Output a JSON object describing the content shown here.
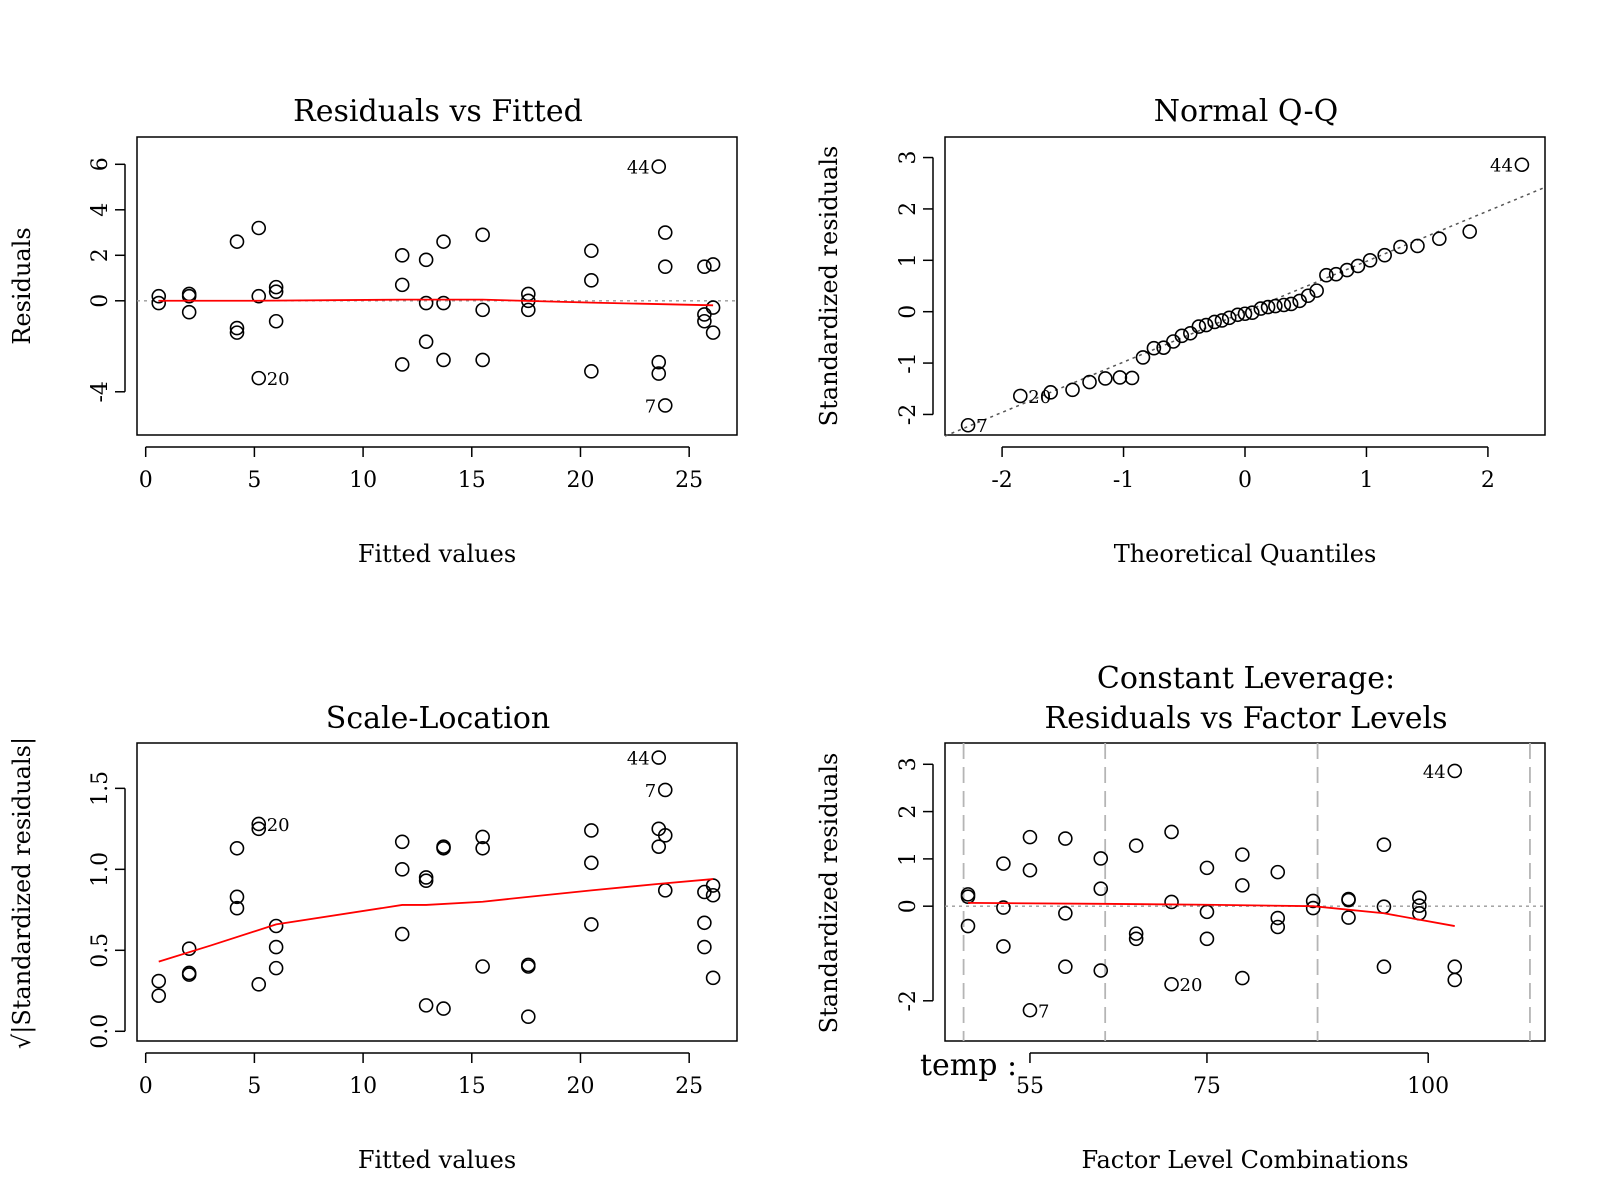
{
  "colors": {
    "points": "#000000",
    "smoother": "#ff0000",
    "reference_line": "#9a9a9a",
    "qq_line": "#555555",
    "level_separators": "#b5b5b5"
  },
  "chart_data": [
    {
      "type": "scatter",
      "title": "Residuals vs Fitted",
      "xlabel": "Fitted values",
      "ylabel": "Residuals",
      "xlim": [
        -0.4,
        27.2
      ],
      "ylim": [
        -5.9,
        7.2
      ],
      "xticks": [
        0,
        5,
        10,
        15,
        20,
        25
      ],
      "yticks": [
        -4,
        0,
        2,
        4,
        6
      ],
      "reference_line": 0,
      "points": [
        {
          "x": 0.6,
          "y": 0.2
        },
        {
          "x": 0.6,
          "y": -0.1
        },
        {
          "x": 2.0,
          "y": 0.3
        },
        {
          "x": 2.0,
          "y": 0.2
        },
        {
          "x": 2.0,
          "y": -0.5
        },
        {
          "x": 4.2,
          "y": 2.6
        },
        {
          "x": 4.2,
          "y": -1.2
        },
        {
          "x": 4.2,
          "y": -1.4
        },
        {
          "x": 5.2,
          "y": 3.2
        },
        {
          "x": 5.2,
          "y": 0.2
        },
        {
          "x": 5.2,
          "y": -3.4,
          "label": "20"
        },
        {
          "x": 6.0,
          "y": 0.6
        },
        {
          "x": 6.0,
          "y": 0.4
        },
        {
          "x": 6.0,
          "y": -0.9
        },
        {
          "x": 11.8,
          "y": 2.0
        },
        {
          "x": 11.8,
          "y": 0.7
        },
        {
          "x": 11.8,
          "y": -2.8
        },
        {
          "x": 12.9,
          "y": 1.8
        },
        {
          "x": 12.9,
          "y": -0.1
        },
        {
          "x": 12.9,
          "y": -1.8
        },
        {
          "x": 13.7,
          "y": 2.6
        },
        {
          "x": 13.7,
          "y": -0.1
        },
        {
          "x": 13.7,
          "y": -2.6
        },
        {
          "x": 15.5,
          "y": 2.9
        },
        {
          "x": 15.5,
          "y": -0.4
        },
        {
          "x": 15.5,
          "y": -2.6
        },
        {
          "x": 17.6,
          "y": 0.3
        },
        {
          "x": 17.6,
          "y": 0.0
        },
        {
          "x": 17.6,
          "y": -0.4
        },
        {
          "x": 20.5,
          "y": 2.2
        },
        {
          "x": 20.5,
          "y": 0.9
        },
        {
          "x": 20.5,
          "y": -3.1
        },
        {
          "x": 23.6,
          "y": 5.9,
          "label": "44"
        },
        {
          "x": 23.6,
          "y": -2.7
        },
        {
          "x": 23.6,
          "y": -3.2
        },
        {
          "x": 23.9,
          "y": 3.0
        },
        {
          "x": 23.9,
          "y": 1.5
        },
        {
          "x": 23.9,
          "y": -4.6,
          "label": "7"
        },
        {
          "x": 25.7,
          "y": 1.5
        },
        {
          "x": 25.7,
          "y": -0.6
        },
        {
          "x": 25.7,
          "y": -0.9
        },
        {
          "x": 26.1,
          "y": 1.6
        },
        {
          "x": 26.1,
          "y": -0.3
        },
        {
          "x": 26.1,
          "y": -1.4
        }
      ],
      "smoother": [
        {
          "x": 0.6,
          "y": 0.0
        },
        {
          "x": 5.0,
          "y": 0.0
        },
        {
          "x": 11.8,
          "y": 0.05
        },
        {
          "x": 15.5,
          "y": 0.05
        },
        {
          "x": 20.5,
          "y": -0.08
        },
        {
          "x": 26.1,
          "y": -0.2
        }
      ]
    },
    {
      "type": "scatter",
      "title": "Normal Q-Q",
      "xlabel": "Theoretical Quantiles",
      "ylabel": "Standardized residuals",
      "xlim": [
        -2.47,
        2.47
      ],
      "ylim": [
        -2.4,
        3.4
      ],
      "xticks": [
        -2,
        -1,
        0,
        1,
        2
      ],
      "yticks": [
        -2,
        -1,
        0,
        1,
        2,
        3
      ],
      "qq_line": {
        "intercept": 0.0,
        "slope": 0.98
      },
      "points": [
        {
          "x": -2.28,
          "y": -2.21,
          "label": "7"
        },
        {
          "x": -1.85,
          "y": -1.64,
          "label": "20"
        },
        {
          "x": -1.6,
          "y": -1.57
        },
        {
          "x": -1.42,
          "y": -1.52
        },
        {
          "x": -1.28,
          "y": -1.37
        },
        {
          "x": -1.15,
          "y": -1.3
        },
        {
          "x": -1.03,
          "y": -1.28
        },
        {
          "x": -0.93,
          "y": -1.29
        },
        {
          "x": -0.84,
          "y": -0.89
        },
        {
          "x": -0.75,
          "y": -0.71
        },
        {
          "x": -0.67,
          "y": -0.7
        },
        {
          "x": -0.59,
          "y": -0.58
        },
        {
          "x": -0.52,
          "y": -0.47
        },
        {
          "x": -0.45,
          "y": -0.42
        },
        {
          "x": -0.38,
          "y": -0.29
        },
        {
          "x": -0.32,
          "y": -0.26
        },
        {
          "x": -0.25,
          "y": -0.2
        },
        {
          "x": -0.19,
          "y": -0.17
        },
        {
          "x": -0.13,
          "y": -0.12
        },
        {
          "x": -0.06,
          "y": -0.06
        },
        {
          "x": 0.0,
          "y": -0.04
        },
        {
          "x": 0.06,
          "y": -0.02
        },
        {
          "x": 0.13,
          "y": 0.06
        },
        {
          "x": 0.19,
          "y": 0.09
        },
        {
          "x": 0.25,
          "y": 0.11
        },
        {
          "x": 0.32,
          "y": 0.13
        },
        {
          "x": 0.38,
          "y": 0.15
        },
        {
          "x": 0.45,
          "y": 0.21
        },
        {
          "x": 0.52,
          "y": 0.31
        },
        {
          "x": 0.59,
          "y": 0.41
        },
        {
          "x": 0.67,
          "y": 0.71
        },
        {
          "x": 0.75,
          "y": 0.73
        },
        {
          "x": 0.84,
          "y": 0.81
        },
        {
          "x": 0.93,
          "y": 0.89
        },
        {
          "x": 1.03,
          "y": 1.0
        },
        {
          "x": 1.15,
          "y": 1.1
        },
        {
          "x": 1.28,
          "y": 1.26
        },
        {
          "x": 1.42,
          "y": 1.28
        },
        {
          "x": 1.6,
          "y": 1.42
        },
        {
          "x": 1.85,
          "y": 1.56
        },
        {
          "x": 2.28,
          "y": 2.86,
          "label": "44"
        }
      ]
    },
    {
      "type": "scatter",
      "title": "Scale-Location",
      "xlabel": "Fitted values",
      "ylabel": "√|Standardized residuals|",
      "xlim": [
        -0.4,
        27.2
      ],
      "ylim": [
        -0.06,
        1.78
      ],
      "xticks": [
        0,
        5,
        10,
        15,
        20,
        25
      ],
      "yticks": [
        0.0,
        0.5,
        1.0,
        1.5
      ],
      "ytick_labels": [
        "0.0",
        "0.5",
        "1.0",
        "1.5"
      ],
      "points": [
        {
          "x": 0.6,
          "y": 0.31
        },
        {
          "x": 0.6,
          "y": 0.22
        },
        {
          "x": 2.0,
          "y": 0.51
        },
        {
          "x": 2.0,
          "y": 0.36
        },
        {
          "x": 2.0,
          "y": 0.35
        },
        {
          "x": 4.2,
          "y": 1.13
        },
        {
          "x": 4.2,
          "y": 0.83
        },
        {
          "x": 4.2,
          "y": 0.76
        },
        {
          "x": 5.2,
          "y": 1.28,
          "label": "20"
        },
        {
          "x": 5.2,
          "y": 1.25
        },
        {
          "x": 5.2,
          "y": 0.29
        },
        {
          "x": 6.0,
          "y": 0.65
        },
        {
          "x": 6.0,
          "y": 0.52
        },
        {
          "x": 6.0,
          "y": 0.39
        },
        {
          "x": 11.8,
          "y": 1.17
        },
        {
          "x": 11.8,
          "y": 1.0
        },
        {
          "x": 11.8,
          "y": 0.6
        },
        {
          "x": 12.9,
          "y": 0.95
        },
        {
          "x": 12.9,
          "y": 0.93
        },
        {
          "x": 12.9,
          "y": 0.16
        },
        {
          "x": 13.7,
          "y": 1.14
        },
        {
          "x": 13.7,
          "y": 1.13
        },
        {
          "x": 13.7,
          "y": 0.14
        },
        {
          "x": 15.5,
          "y": 1.2
        },
        {
          "x": 15.5,
          "y": 1.13
        },
        {
          "x": 15.5,
          "y": 0.4
        },
        {
          "x": 17.6,
          "y": 0.41
        },
        {
          "x": 17.6,
          "y": 0.4
        },
        {
          "x": 17.6,
          "y": 0.09
        },
        {
          "x": 20.5,
          "y": 1.24
        },
        {
          "x": 20.5,
          "y": 1.04
        },
        {
          "x": 20.5,
          "y": 0.66
        },
        {
          "x": 23.6,
          "y": 1.69,
          "label": "44"
        },
        {
          "x": 23.6,
          "y": 1.25
        },
        {
          "x": 23.6,
          "y": 1.14
        },
        {
          "x": 23.9,
          "y": 1.49,
          "label": "7"
        },
        {
          "x": 23.9,
          "y": 1.21
        },
        {
          "x": 23.9,
          "y": 0.87
        },
        {
          "x": 25.7,
          "y": 0.86
        },
        {
          "x": 25.7,
          "y": 0.67
        },
        {
          "x": 25.7,
          "y": 0.52
        },
        {
          "x": 26.1,
          "y": 0.9
        },
        {
          "x": 26.1,
          "y": 0.84
        },
        {
          "x": 26.1,
          "y": 0.33
        }
      ],
      "smoother": [
        {
          "x": 0.6,
          "y": 0.43
        },
        {
          "x": 3.0,
          "y": 0.53
        },
        {
          "x": 6.0,
          "y": 0.66
        },
        {
          "x": 11.8,
          "y": 0.78
        },
        {
          "x": 12.9,
          "y": 0.78
        },
        {
          "x": 15.5,
          "y": 0.8
        },
        {
          "x": 17.6,
          "y": 0.83
        },
        {
          "x": 20.5,
          "y": 0.87
        },
        {
          "x": 23.6,
          "y": 0.91
        },
        {
          "x": 26.1,
          "y": 0.94
        }
      ]
    },
    {
      "type": "scatter",
      "title": "Constant Leverage:",
      "subtitle": "Residuals vs Factor Levels",
      "xlabel": "Factor Level Combinations",
      "ylabel": "Standardized residuals",
      "factor_label": "temp :",
      "xlim": [
        45.4,
        113.2
      ],
      "ylim": [
        -2.85,
        3.45
      ],
      "xticks": [
        55,
        75,
        100
      ],
      "yticks": [
        -2,
        0,
        1,
        2,
        3
      ],
      "reference_line": 0,
      "level_separators": [
        47.5,
        63.5,
        87.5,
        111.5
      ],
      "points": [
        {
          "x": 48,
          "y": 0.25
        },
        {
          "x": 48,
          "y": 0.2
        },
        {
          "x": 48,
          "y": -0.42
        },
        {
          "x": 52,
          "y": 0.9
        },
        {
          "x": 52,
          "y": -0.03
        },
        {
          "x": 52,
          "y": -0.85
        },
        {
          "x": 55,
          "y": 1.46
        },
        {
          "x": 55,
          "y": 0.76
        },
        {
          "x": 55,
          "y": -2.2,
          "label": "7"
        },
        {
          "x": 59,
          "y": 1.43
        },
        {
          "x": 59,
          "y": -0.15
        },
        {
          "x": 59,
          "y": -1.28
        },
        {
          "x": 63,
          "y": 1.01
        },
        {
          "x": 63,
          "y": 0.37
        },
        {
          "x": 63,
          "y": -1.36
        },
        {
          "x": 67,
          "y": 1.28
        },
        {
          "x": 67,
          "y": -0.58
        },
        {
          "x": 67,
          "y": -0.69
        },
        {
          "x": 71,
          "y": 1.57
        },
        {
          "x": 71,
          "y": 0.09
        },
        {
          "x": 71,
          "y": -1.65,
          "label": "20"
        },
        {
          "x": 75,
          "y": 0.81
        },
        {
          "x": 75,
          "y": -0.12
        },
        {
          "x": 75,
          "y": -0.69
        },
        {
          "x": 79,
          "y": 1.09
        },
        {
          "x": 79,
          "y": 0.44
        },
        {
          "x": 79,
          "y": -1.52
        },
        {
          "x": 83,
          "y": 0.72
        },
        {
          "x": 83,
          "y": -0.25
        },
        {
          "x": 83,
          "y": -0.44
        },
        {
          "x": 87,
          "y": 0.11
        },
        {
          "x": 87,
          "y": -0.04
        },
        {
          "x": 91,
          "y": 0.15
        },
        {
          "x": 91,
          "y": 0.13
        },
        {
          "x": 91,
          "y": -0.24
        },
        {
          "x": 95,
          "y": 1.3
        },
        {
          "x": 95,
          "y": -0.01
        },
        {
          "x": 95,
          "y": -1.28
        },
        {
          "x": 99,
          "y": 0.18
        },
        {
          "x": 99,
          "y": 0.01
        },
        {
          "x": 99,
          "y": -0.15
        },
        {
          "x": 103,
          "y": 2.86,
          "label": "44"
        },
        {
          "x": 103,
          "y": -1.28
        },
        {
          "x": 103,
          "y": -1.56
        }
      ],
      "smoother": [
        {
          "x": 48,
          "y": 0.07
        },
        {
          "x": 63,
          "y": 0.05
        },
        {
          "x": 75,
          "y": 0.03
        },
        {
          "x": 87,
          "y": 0.0
        },
        {
          "x": 95,
          "y": -0.15
        },
        {
          "x": 103,
          "y": -0.42
        }
      ]
    }
  ]
}
